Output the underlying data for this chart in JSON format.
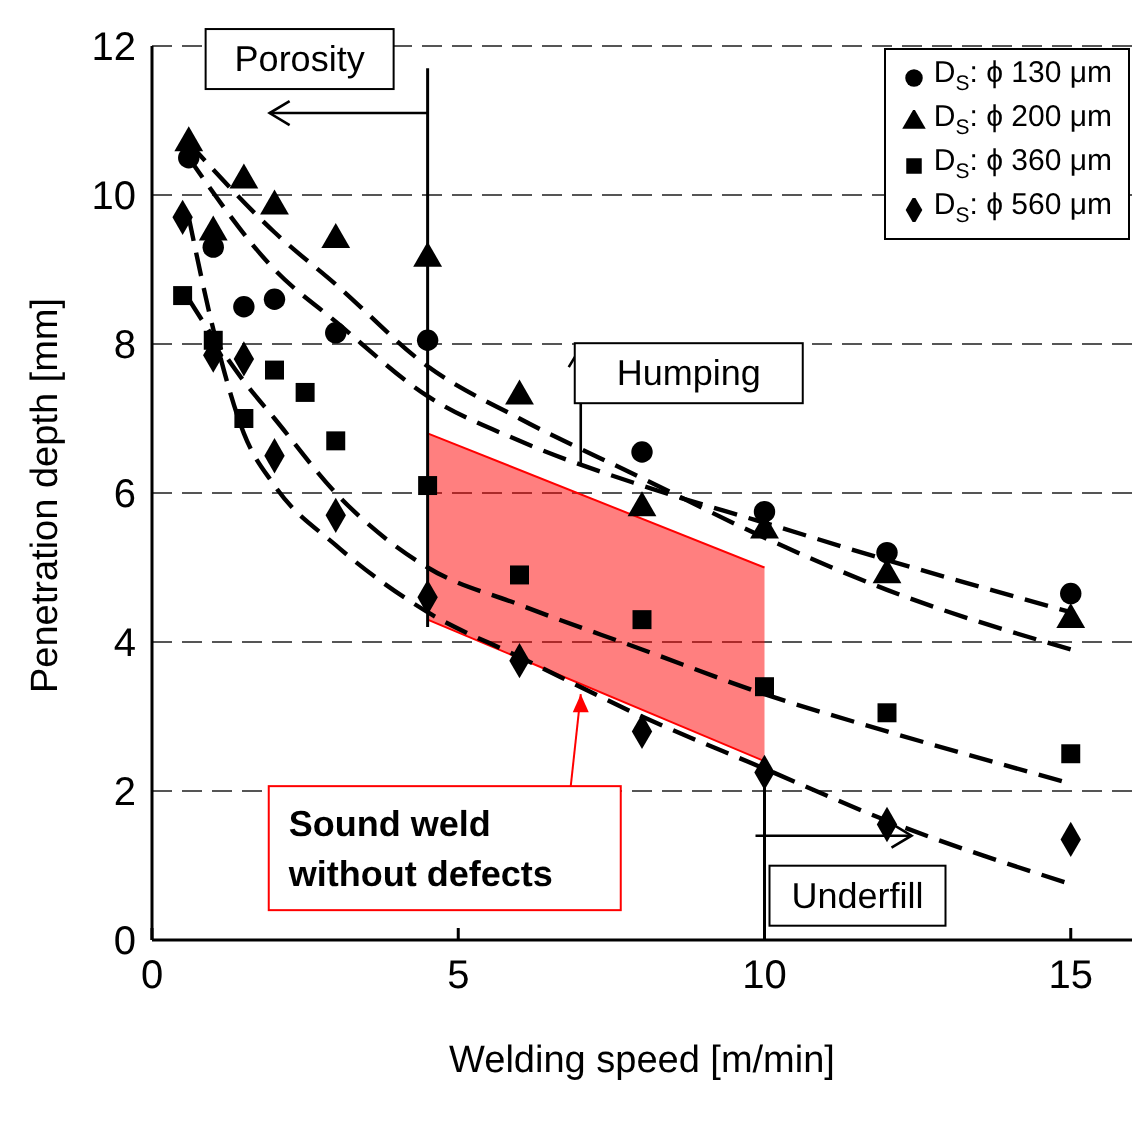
{
  "chart_data": {
    "type": "scatter",
    "xlabel": "Welding speed [m/min]",
    "ylabel": "Penetration depth [mm]",
    "xlim": [
      0,
      16
    ],
    "xticks": [
      0,
      5,
      10,
      15
    ],
    "ylim": [
      0,
      12
    ],
    "yticks": [
      0,
      2,
      4,
      6,
      8,
      10,
      12
    ],
    "grid": "y",
    "legend": "top right",
    "ref_lines": [
      {
        "axis": "x",
        "value": 4.5,
        "color": "#000000"
      },
      {
        "axis": "x",
        "value": 10,
        "color": "#000000"
      }
    ],
    "annotations": [
      {
        "text": "Porosity",
        "x": 4.5,
        "y": 11.1
      },
      {
        "text": "Humping",
        "x": 7,
        "y": 6.4
      },
      {
        "text": "Underfill",
        "x": 12.4,
        "y": 1.4
      },
      {
        "text": "Sound weld\nwithout defects",
        "x": 7,
        "y": 3.3
      }
    ],
    "series": [
      {
        "type": "area",
        "color": "#ff0000",
        "x": [
          4.5,
          10
        ],
        "values": [
          6.8,
          5.0
        ]
      },
      {
        "type": "line",
        "marker": "none",
        "line_style": "solid",
        "color": "#ff0000",
        "x": [
          4.5,
          10
        ],
        "values": [
          4.3,
          2.4
        ]
      },
      {
        "name": "D$_{S}$: ϕ 130 μm",
        "marker": "circle",
        "color": "#000000",
        "x": [
          0.6,
          1,
          1.5,
          2,
          3,
          4.5,
          8,
          10,
          12,
          15
        ],
        "values": [
          10.5,
          9.3,
          8.5,
          8.6,
          8.15,
          8.05,
          6.55,
          5.75,
          5.2,
          4.65
        ]
      },
      {
        "name": "D$_{S}$: ϕ 200 μm",
        "marker": "triangle",
        "color": "#000000",
        "x": [
          0.6,
          1,
          1.5,
          2,
          3,
          4.5,
          6,
          8,
          10,
          12,
          15
        ],
        "values": [
          10.7,
          9.5,
          10.2,
          9.85,
          9.4,
          9.15,
          7.3,
          5.8,
          5.5,
          4.9,
          4.3
        ]
      },
      {
        "name": "D$_{S}$: ϕ 360 μm",
        "marker": "square",
        "color": "#000000",
        "x": [
          0.5,
          1,
          1.5,
          2,
          2.5,
          3,
          4.5,
          6,
          8,
          10,
          12,
          15
        ],
        "values": [
          8.65,
          8.05,
          7.0,
          7.65,
          7.35,
          6.7,
          6.1,
          4.9,
          4.3,
          3.4,
          3.05,
          2.5
        ]
      },
      {
        "name": "D$_{S}$: ϕ 560 μm",
        "marker": "diamond",
        "color": "#000000",
        "x": [
          0.5,
          1,
          1.5,
          2,
          3,
          4.5,
          6,
          8,
          10,
          12,
          15
        ],
        "values": [
          9.7,
          7.85,
          7.8,
          6.5,
          5.7,
          4.6,
          3.75,
          2.8,
          2.25,
          1.55,
          1.35
        ]
      },
      {
        "type": "line",
        "marker": "none",
        "line_style": "dashed",
        "color": "#000000",
        "x": [
          0.6,
          2,
          3,
          4.5,
          6,
          8,
          10,
          12,
          15
        ],
        "values": [
          10.5,
          9.0,
          8.3,
          7.3,
          6.7,
          6.1,
          5.6,
          5.1,
          4.4
        ]
      },
      {
        "type": "line",
        "marker": "none",
        "line_style": "dashed",
        "color": "#000000",
        "x": [
          0.6,
          2,
          3,
          4.5,
          6,
          8,
          10,
          12,
          15
        ],
        "values": [
          10.7,
          9.5,
          8.8,
          7.7,
          7.0,
          6.2,
          5.4,
          4.7,
          3.9
        ]
      },
      {
        "type": "line",
        "marker": "none",
        "line_style": "dashed",
        "color": "#000000",
        "x": [
          0.6,
          1.5,
          2,
          3,
          4.5,
          6,
          8,
          10,
          12,
          15
        ],
        "values": [
          8.6,
          7.5,
          7.0,
          6.0,
          5.0,
          4.5,
          3.9,
          3.3,
          2.8,
          2.1
        ]
      },
      {
        "type": "line",
        "marker": "none",
        "line_style": "dashed",
        "color": "#000000",
        "x": [
          0.6,
          1,
          1.5,
          2,
          3,
          4.5,
          6,
          8,
          10,
          12,
          15
        ],
        "values": [
          9.7,
          8.2,
          6.8,
          6.1,
          5.3,
          4.4,
          3.8,
          3.0,
          2.3,
          1.6,
          0.75
        ]
      }
    ]
  }
}
